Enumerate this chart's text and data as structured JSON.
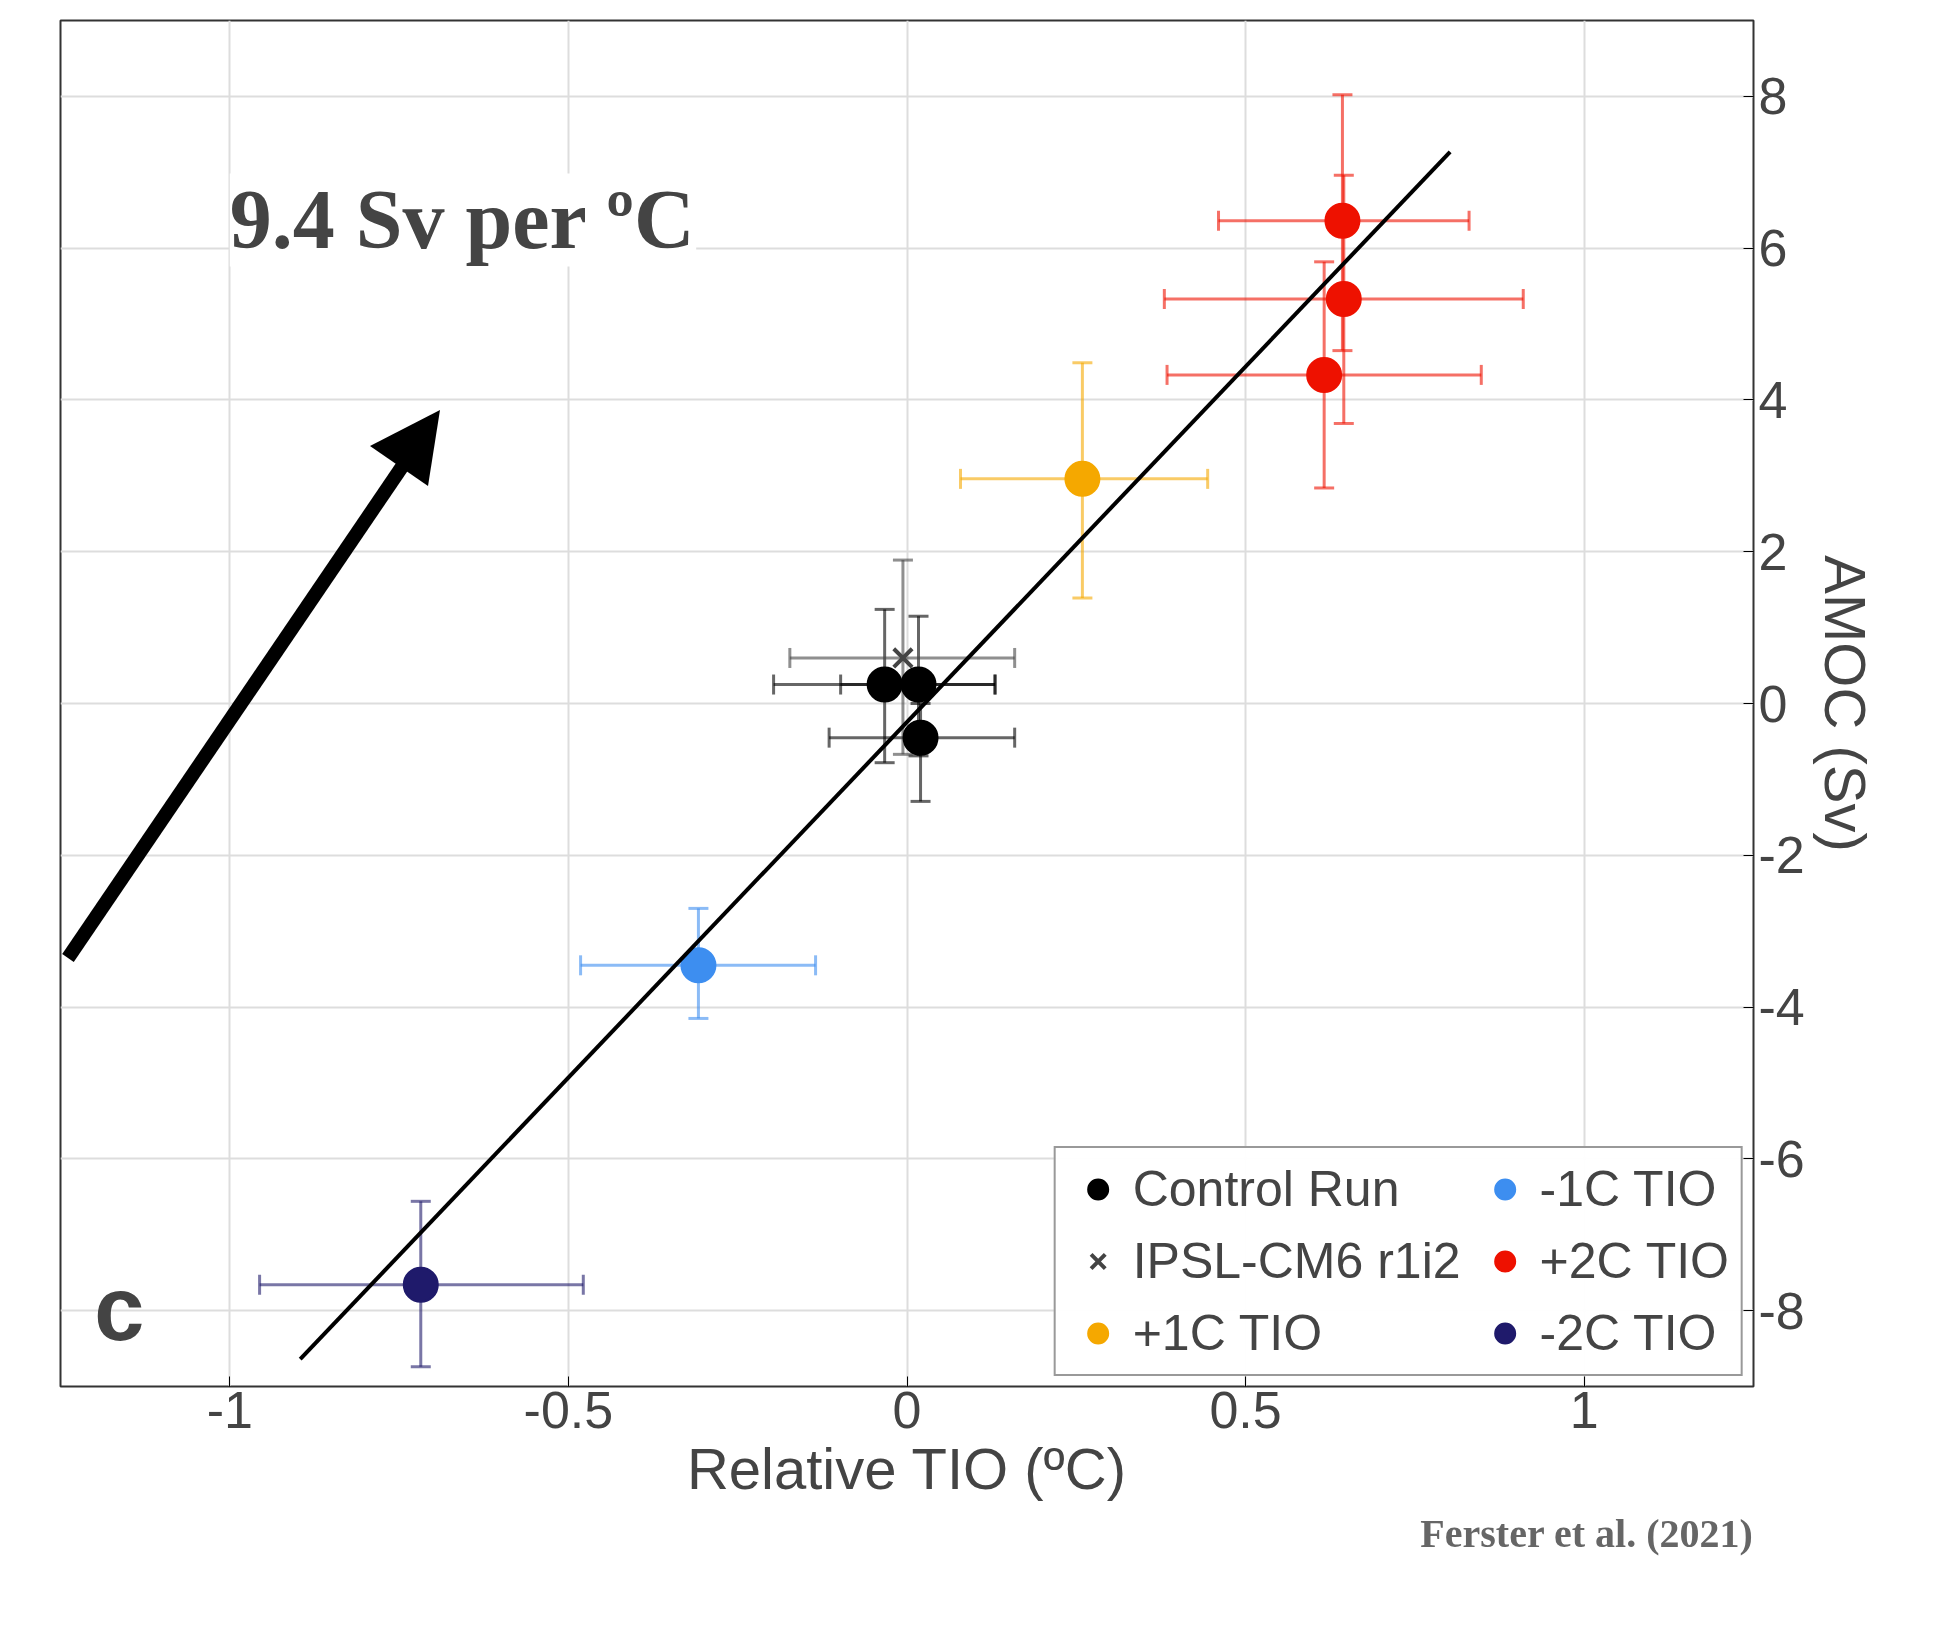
{
  "chart_data": {
    "type": "scatter",
    "xlabel": "Relative TIO (ºC)",
    "ylabel": "AMOC (Sv)",
    "xlim": [
      -1.25,
      1.25
    ],
    "ylim": [
      -9,
      9
    ],
    "xticks": [
      -1,
      -0.5,
      0,
      0.5,
      1
    ],
    "yticks": [
      -8,
      -6,
      -4,
      -2,
      0,
      2,
      4,
      6,
      8
    ],
    "grid": true,
    "legend": "bottom right",
    "marker": "circle",
    "annotations": [
      "9.4 Sv per ºC",
      "c",
      "Ferster et al. (2021)"
    ],
    "series": [
      {
        "name": "Control Run",
        "color": "#000000",
        "x": [
          -0.033,
          0.017,
          0.02
        ],
        "values": [
          0.25,
          0.25,
          -0.45
        ],
        "xerrors": [
          [
            -0.197,
            0.13
          ],
          [
            -0.098,
            0.13
          ],
          [
            -0.115,
            0.159
          ]
        ],
        "errors": [
          [
            -0.78,
            1.24
          ],
          [
            -0.69,
            1.15
          ],
          [
            -1.29,
            0.0
          ]
        ]
      },
      {
        "name": "IPSL-CM6 r1i2",
        "color": "#444444",
        "marker": "cross",
        "x": [
          -0.006
        ],
        "values": [
          0.6
        ],
        "xerrors": [
          [
            -0.173,
            0.159
          ]
        ],
        "errors": [
          [
            -0.67,
            1.89
          ]
        ]
      },
      {
        "name": "+1C TIO",
        "color": "#f5a800",
        "x": [
          0.259
        ],
        "values": [
          2.96
        ],
        "xerrors": [
          [
            0.079,
            0.444
          ]
        ],
        "errors": [
          [
            1.39,
            4.49
          ]
        ]
      },
      {
        "name": "-1C TIO",
        "color": "#3d8ef0",
        "x": [
          -0.308
        ],
        "values": [
          -3.45
        ],
        "xerrors": [
          [
            -0.482,
            -0.135
          ]
        ],
        "errors": [
          [
            -4.15,
            -2.7
          ]
        ]
      },
      {
        "name": "+2C TIO",
        "color": "#ee1100",
        "x": [
          0.643,
          0.645,
          0.616
        ],
        "values": [
          6.36,
          5.33,
          4.33
        ],
        "xerrors": [
          [
            0.46,
            0.83
          ],
          [
            0.38,
            0.91
          ],
          [
            0.384,
            0.848
          ]
        ],
        "errors": [
          [
            4.65,
            8.02
          ],
          [
            3.69,
            6.96
          ],
          [
            2.84,
            5.82
          ]
        ]
      },
      {
        "name": "-2C TIO",
        "color": "#1f1a6b",
        "x": [
          -0.718
        ],
        "values": [
          -7.66
        ],
        "xerrors": [
          [
            -0.956,
            -0.478
          ]
        ],
        "errors": [
          [
            -8.74,
            -6.56
          ]
        ]
      },
      {
        "type": "line",
        "color": "#000000",
        "marker": "none",
        "x": [
          -0.896,
          0.802
        ],
        "values": [
          -8.64,
          7.27
        ]
      }
    ]
  }
}
